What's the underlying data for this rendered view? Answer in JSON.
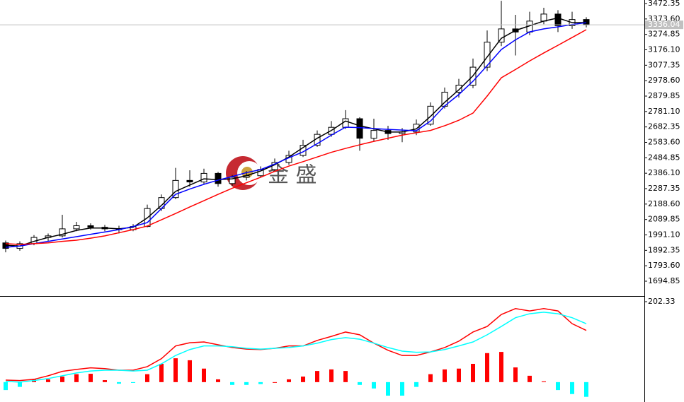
{
  "chart_data": [
    {
      "type": "candlestick",
      "open": [
        1940,
        1905,
        1935,
        1975,
        1985,
        2030,
        2050,
        2040,
        2030,
        2025,
        2045,
        2160,
        2230,
        2340,
        2330,
        2385,
        2320,
        2360,
        2370,
        2410,
        2455,
        2500,
        2565,
        2635,
        2680,
        2735,
        2610,
        2660,
        2640,
        2650,
        2700,
        2815,
        2905,
        2950,
        3065,
        3225,
        3310,
        3290,
        3360,
        3405,
        3330,
        3370
      ],
      "high": [
        1955,
        1950,
        1990,
        2000,
        2120,
        2075,
        2065,
        2055,
        2050,
        2060,
        2185,
        2250,
        2420,
        2405,
        2415,
        2395,
        2375,
        2400,
        2430,
        2480,
        2530,
        2600,
        2660,
        2720,
        2790,
        2745,
        2735,
        2690,
        2675,
        2730,
        2840,
        2935,
        2990,
        3120,
        3300,
        3490,
        3400,
        3420,
        3445,
        3430,
        3420,
        3385
      ],
      "low": [
        1880,
        1890,
        1925,
        1950,
        1975,
        2015,
        2025,
        2015,
        2000,
        2015,
        2040,
        2145,
        2220,
        2300,
        2315,
        2300,
        2305,
        2340,
        2360,
        2400,
        2440,
        2490,
        2555,
        2620,
        2670,
        2530,
        2590,
        2600,
        2585,
        2630,
        2690,
        2800,
        2870,
        2930,
        3040,
        3200,
        3140,
        3270,
        3340,
        3290,
        3310,
        3320
      ],
      "close": [
        1905,
        1935,
        1975,
        1985,
        2030,
        2050,
        2040,
        2030,
        2025,
        2045,
        2160,
        2230,
        2340,
        2330,
        2385,
        2320,
        2360,
        2370,
        2410,
        2455,
        2500,
        2565,
        2635,
        2680,
        2735,
        2610,
        2660,
        2640,
        2650,
        2700,
        2815,
        2905,
        2950,
        3065,
        3225,
        3310,
        3290,
        3360,
        3405,
        3330,
        3370,
        3336.04
      ],
      "up_color": "#ffffff",
      "down_color": "#000000",
      "series": [
        {
          "color": "#000000",
          "values": [
            1925,
            1920,
            1950,
            1975,
            1995,
            2020,
            2035,
            2035,
            2030,
            2040,
            2100,
            2180,
            2270,
            2310,
            2350,
            2345,
            2350,
            2370,
            2400,
            2440,
            2490,
            2550,
            2610,
            2660,
            2720,
            2690,
            2670,
            2650,
            2650,
            2670,
            2750,
            2840,
            2920,
            3010,
            3130,
            3250,
            3300,
            3330,
            3360,
            3380,
            3350,
            3350
          ]
        },
        {
          "color": "#0000ff",
          "values": [
            1912,
            1920,
            1935,
            1950,
            1965,
            1980,
            1995,
            2010,
            2025,
            2045,
            2070,
            2160,
            2251,
            2285,
            2315,
            2342,
            2365,
            2390,
            2409,
            2445,
            2485,
            2523,
            2575,
            2630,
            2681,
            2678,
            2672,
            2667,
            2662,
            2658,
            2720,
            2817,
            2890,
            2975,
            3075,
            3178,
            3240,
            3291,
            3310,
            3323,
            3338,
            3350
          ]
        },
        {
          "color": "#ff0000",
          "values": [
            1935,
            1930,
            1935,
            1940,
            1950,
            1957,
            1970,
            1985,
            2005,
            2025,
            2048,
            2088,
            2128,
            2170,
            2210,
            2251,
            2290,
            2325,
            2360,
            2398,
            2432,
            2460,
            2490,
            2520,
            2545,
            2568,
            2590,
            2610,
            2630,
            2645,
            2660,
            2690,
            2725,
            2771,
            2880,
            2997,
            3050,
            3105,
            3156,
            3205,
            3255,
            3305
          ]
        }
      ],
      "ylim": [
        1604.4,
        3495
      ],
      "yticks": [
        3472.35,
        {
          "value": 3373.6,
          "label": "3373.60"
        },
        3274.85,
        {
          "value": 3176.1,
          "label": "3176.10"
        },
        3077.35,
        {
          "value": 2978.6,
          "label": "2978.60"
        },
        2879.85,
        {
          "value": 2781.1,
          "label": "2781.10"
        },
        2682.35,
        {
          "value": 2583.6,
          "label": "2583.60"
        },
        2484.85,
        {
          "value": 2386.1,
          "label": "2386.10"
        },
        2287.35,
        {
          "value": 2188.6,
          "label": "2188.60"
        },
        2089.85,
        {
          "value": 1991.1,
          "label": "1991.10"
        },
        1892.35,
        {
          "value": 1793.6,
          "label": "1793.60"
        },
        1694.85
      ],
      "price_line_color": "#c0c0c0",
      "watermark": "金 盛"
    },
    {
      "type": "macd",
      "values": [
        -20,
        -12,
        7,
        7,
        14,
        20,
        21,
        5,
        -4,
        -2,
        20,
        46,
        60,
        55,
        34,
        7,
        -7,
        -7,
        -5,
        0,
        7,
        14,
        28,
        32,
        28,
        -7,
        -16,
        -34,
        -34,
        -12,
        20,
        32,
        34,
        46,
        73,
        76,
        37,
        16,
        2,
        -20,
        -30,
        -37
      ],
      "positive_color": "#ff0000",
      "negative_color": "#00ffff",
      "series": [
        {
          "color": "#ff0000",
          "values": [
            5,
            4,
            7,
            16,
            27,
            32,
            36,
            34,
            30,
            30,
            39,
            59,
            91,
            99,
            101,
            94,
            87,
            83,
            82,
            85,
            91,
            91,
            105,
            115,
            126,
            119,
            98,
            80,
            67,
            67,
            76,
            87,
            103,
            126,
            140,
            170,
            185,
            179,
            185,
            179,
            147,
            130
          ]
        },
        {
          "color": "#00ffff",
          "values": [
            2,
            0,
            4,
            9,
            16,
            23,
            28,
            30,
            30,
            28,
            30,
            46,
            67,
            82,
            91,
            91,
            89,
            85,
            83,
            85,
            87,
            91,
            98,
            107,
            112,
            108,
            98,
            87,
            78,
            75,
            76,
            82,
            91,
            101,
            119,
            140,
            162,
            172,
            176,
            172,
            162,
            147
          ]
        }
      ],
      "ylim": [
        -50,
        213
      ],
      "yticks": [
        202.33
      ]
    }
  ]
}
